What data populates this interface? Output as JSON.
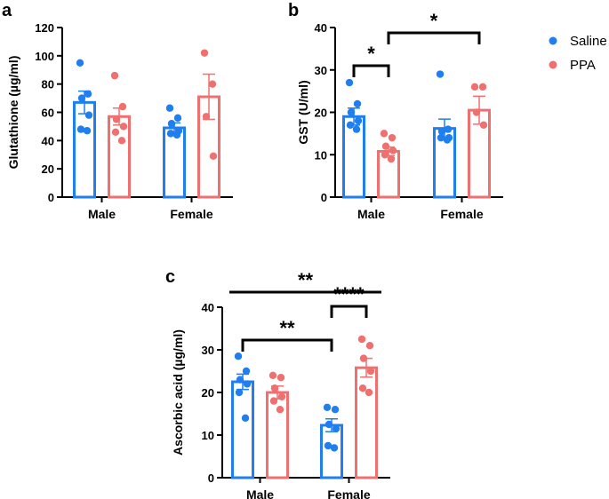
{
  "legend": [
    {
      "name": "Saline",
      "color": "#1f7ef0"
    },
    {
      "name": "PPA",
      "color": "#f0706f"
    }
  ],
  "chart_data": [
    {
      "panel": "a",
      "type": "bar",
      "ylabel": "Glutathione (µg/ml)",
      "ylim": [
        0,
        120
      ],
      "yticks": [
        0,
        20,
        40,
        60,
        80,
        100,
        120
      ],
      "categories": [
        "Male",
        "Female"
      ],
      "series": [
        {
          "name": "Saline",
          "values": [
            67,
            49
          ],
          "sem": [
            8,
            3.5
          ],
          "points": [
            [
              95,
              73,
              70,
              58,
              48,
              47
            ],
            [
              63,
              56,
              52,
              47,
              45,
              44
            ]
          ]
        },
        {
          "name": "PPA",
          "values": [
            57,
            71
          ],
          "sem": [
            6,
            16
          ],
          "points": [
            [
              86,
              64,
              55,
              50,
              46,
              40
            ],
            [
              102,
              80,
              57,
              29
            ]
          ]
        }
      ],
      "significance": []
    },
    {
      "panel": "b",
      "type": "bar",
      "ylabel": "GST (U/ml)",
      "ylim": [
        0,
        40
      ],
      "yticks": [
        0,
        10,
        20,
        30,
        40
      ],
      "categories": [
        "Male",
        "Female"
      ],
      "series": [
        {
          "name": "Saline",
          "values": [
            19,
            16.2
          ],
          "sem": [
            2,
            2.2
          ],
          "points": [
            [
              27,
              22,
              20,
              18,
              17,
              16
            ],
            [
              29,
              16,
              15.5,
              14,
              14,
              13.5
            ]
          ]
        },
        {
          "name": "PPA",
          "values": [
            10.8,
            20.5
          ],
          "sem": [
            1,
            3.3
          ],
          "points": [
            [
              15,
              14,
              12,
              11,
              10,
              9
            ],
            [
              26,
              26,
              20,
              17
            ]
          ]
        }
      ],
      "significance": [
        {
          "from": [
            0,
            0
          ],
          "to": [
            0,
            1
          ],
          "label": "*",
          "level": 0
        },
        {
          "from": [
            0,
            1
          ],
          "to": [
            1,
            1
          ],
          "label": "*",
          "level": 1
        }
      ]
    },
    {
      "panel": "c",
      "type": "bar",
      "ylabel": "Ascorbic acid (µg/ml)",
      "ylim": [
        0,
        40
      ],
      "yticks": [
        0,
        10,
        20,
        30,
        40
      ],
      "categories": [
        "Male",
        "Female"
      ],
      "series": [
        {
          "name": "Saline",
          "values": [
            22.5,
            12.3
          ],
          "sem": [
            1.8,
            1.5
          ],
          "points": [
            [
              28.5,
              25,
              23,
              22,
              20,
              14
            ],
            [
              16.5,
              16,
              12.5,
              11.5,
              7.5,
              7
            ]
          ]
        },
        {
          "name": "PPA",
          "values": [
            20,
            25.8
          ],
          "sem": [
            1.5,
            2.2
          ],
          "points": [
            [
              24,
              23.5,
              21,
              19,
              18,
              16
            ],
            [
              32.5,
              31,
              28,
              25,
              21,
              20
            ]
          ]
        }
      ],
      "significance": [
        {
          "from": [
            0,
            0
          ],
          "to": [
            1,
            0
          ],
          "label": "**",
          "level": 0
        },
        {
          "from": [
            1,
            0
          ],
          "to": [
            1,
            1
          ],
          "label": "****",
          "level": 1
        },
        {
          "from": [
            0,
            0
          ],
          "to": [
            1,
            1
          ],
          "label": "**",
          "level": 2
        }
      ]
    }
  ]
}
